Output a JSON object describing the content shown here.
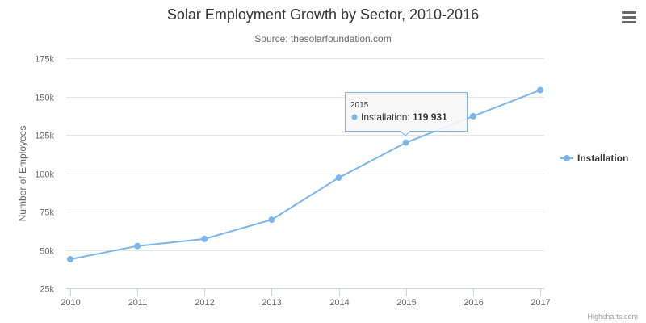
{
  "chart_data": {
    "type": "line",
    "title": "Solar Employment Growth by Sector, 2010-2016",
    "subtitle": "Source: thesolarfoundation.com",
    "ylabel": "Number of Employees",
    "xlabel": "",
    "x": [
      2010,
      2011,
      2012,
      2013,
      2014,
      2015,
      2016,
      2017
    ],
    "xlim": [
      2010,
      2017
    ],
    "ylim": [
      25000,
      175000
    ],
    "yticks": [
      25000,
      50000,
      75000,
      100000,
      125000,
      150000,
      175000
    ],
    "ytick_labels": [
      "25k",
      "50k",
      "75k",
      "100k",
      "125k",
      "150k",
      "175k"
    ],
    "xtick_labels": [
      "2010",
      "2011",
      "2012",
      "2013",
      "2014",
      "2015",
      "2016",
      "2017"
    ],
    "grid": true,
    "legend_position": "right",
    "series": [
      {
        "name": "Installation",
        "color": "#7cb5ec",
        "values": [
          43934,
          52503,
          57177,
          69658,
          97031,
          119931,
          137133,
          154175
        ]
      }
    ],
    "tooltip": {
      "header": "2015",
      "label": "Installation: ",
      "value": "119 931"
    }
  },
  "credits": "Highcharts.com",
  "menu_icon": "hamburger-menu-icon"
}
